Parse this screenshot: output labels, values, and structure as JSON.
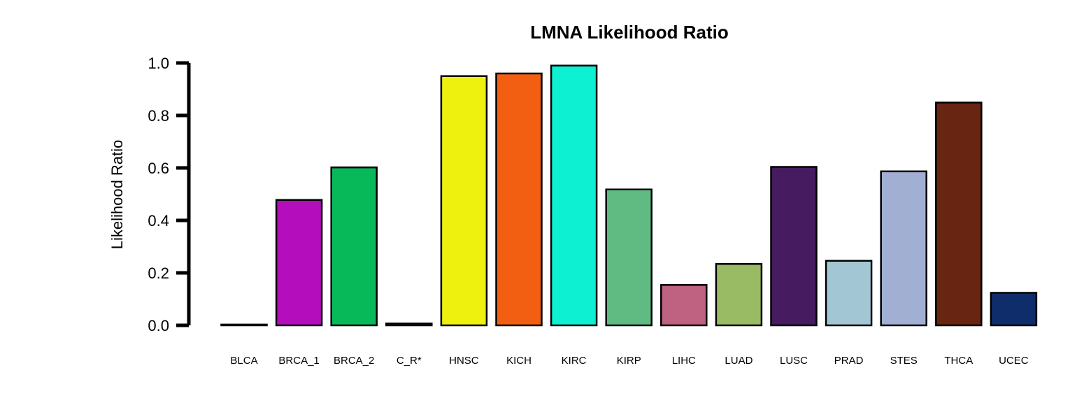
{
  "chart_data": {
    "type": "bar",
    "title": "LMNA Likelihood Ratio",
    "xlabel": "",
    "ylabel": "Likelihood Ratio",
    "ylim": [
      0,
      1.0
    ],
    "yticks": [
      "0.0",
      "0.2",
      "0.4",
      "0.6",
      "0.8",
      "1.0"
    ],
    "grid": false,
    "categories": [
      "BLCA",
      "BRCA_1",
      "BRCA_2",
      "C_R*",
      "HNSC",
      "KICH",
      "KIRC",
      "KIRP",
      "LIHC",
      "LUAD",
      "LUSC",
      "PRAD",
      "STES",
      "THCA",
      "UCEC"
    ],
    "values": [
      0.003,
      0.478,
      0.602,
      0.007,
      0.95,
      0.96,
      0.99,
      0.518,
      0.154,
      0.234,
      0.604,
      0.246,
      0.587,
      0.849,
      0.124
    ],
    "colors": [
      "#000000",
      "#b40dbb",
      "#08b95a",
      "#6a0fa0",
      "#eef00e",
      "#f25f12",
      "#0ef0d2",
      "#60bb82",
      "#bf6180",
      "#98bb64",
      "#461b60",
      "#a2c6d4",
      "#a0afd2",
      "#672512",
      "#0f2d6a"
    ]
  }
}
